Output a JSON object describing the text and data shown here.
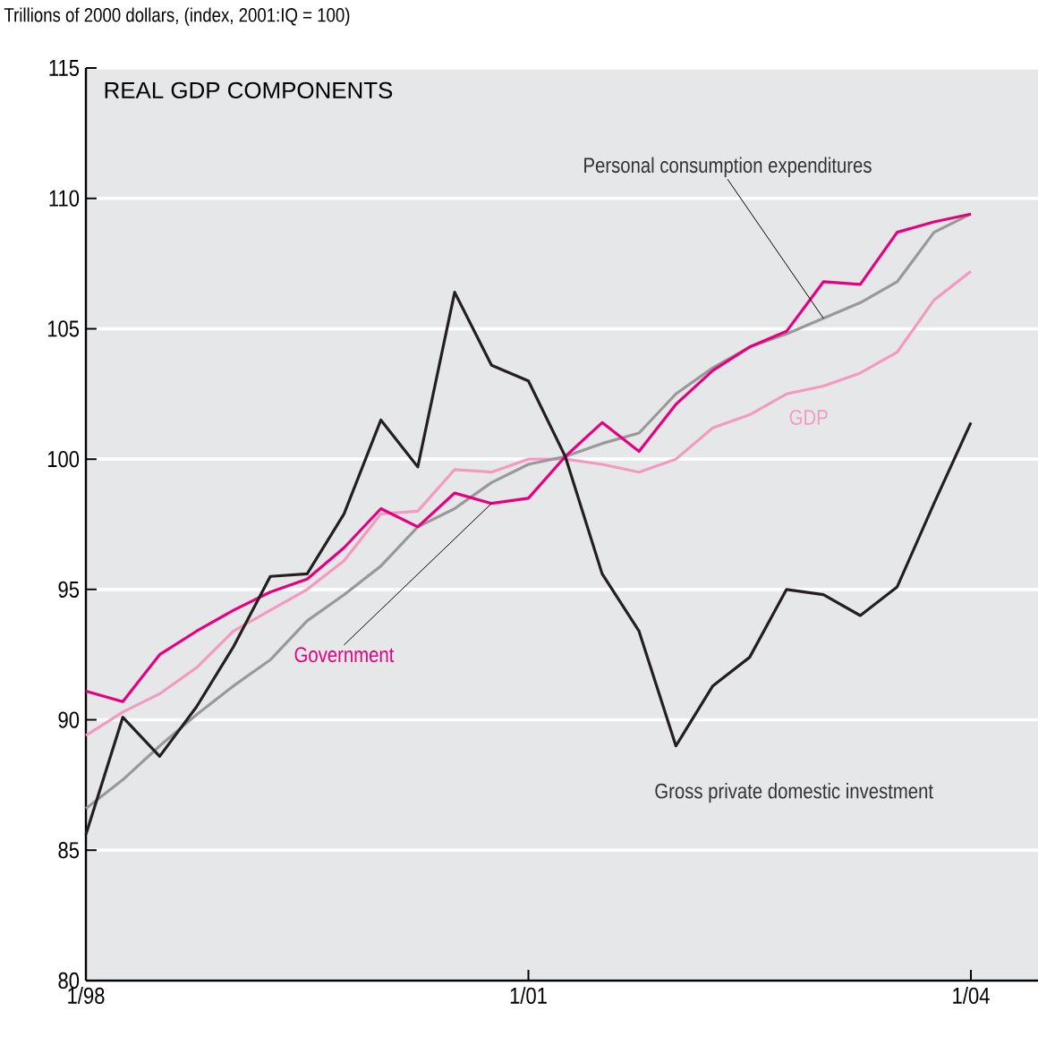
{
  "chart_data": {
    "type": "line",
    "title": "REAL GDP COMPONENTS",
    "ylabel": "Trillions of 2000 dollars, (index, 2001:IQ = 100)",
    "x": [
      "1998-01",
      "1998-04",
      "1998-07",
      "1998-10",
      "1999-01",
      "1999-04",
      "1999-07",
      "1999-10",
      "2000-01",
      "2000-04",
      "2000-07",
      "2000-10",
      "2001-01",
      "2001-04",
      "2001-07",
      "2001-10",
      "2002-01",
      "2002-04",
      "2002-07",
      "2002-10",
      "2003-01",
      "2003-04",
      "2003-07",
      "2003-10",
      "2004-01"
    ],
    "xlim": [
      "1998-01",
      "2004-06-15"
    ],
    "xticks": [
      {
        "value": "1998-01",
        "label": "1/98"
      },
      {
        "value": "2001-01",
        "label": "1/01"
      },
      {
        "value": "2004-01",
        "label": "1/04"
      }
    ],
    "ylim": [
      80,
      115
    ],
    "yticks": [
      80,
      85,
      90,
      95,
      100,
      105,
      110,
      115
    ],
    "grid": "y",
    "legend": false,
    "marker": "none",
    "line_style": "solid",
    "series": [
      {
        "name": "GDP",
        "color": "#f49ac1",
        "values": [
          89.4,
          90.3,
          91.0,
          92.0,
          93.4,
          94.2,
          95.0,
          96.1,
          97.9,
          98.0,
          99.6,
          99.5,
          100.0,
          100.0,
          99.8,
          99.5,
          100.0,
          101.2,
          101.7,
          102.5,
          102.8,
          103.3,
          104.1,
          106.1,
          107.2
        ]
      },
      {
        "name": "Personal consumption expenditures",
        "color": "#999999",
        "values": [
          86.6,
          87.7,
          89.0,
          90.2,
          91.3,
          92.3,
          93.8,
          94.8,
          95.9,
          97.4,
          98.1,
          99.1,
          99.8,
          100.1,
          100.6,
          101.0,
          102.5,
          103.5,
          104.3,
          104.8,
          105.4,
          106.0,
          106.8,
          108.7,
          109.4
        ]
      },
      {
        "name": "Government",
        "color": "#e6007e",
        "values": [
          91.1,
          90.7,
          92.5,
          93.4,
          94.2,
          94.9,
          95.4,
          96.6,
          98.1,
          97.4,
          98.7,
          98.3,
          98.5,
          100.1,
          101.4,
          100.3,
          102.1,
          103.4,
          104.3,
          104.9,
          106.8,
          106.7,
          108.7,
          109.1,
          109.4
        ]
      },
      {
        "name": "Gross private domestic investment",
        "color": "#231f20",
        "values": [
          85.6,
          90.1,
          88.6,
          90.5,
          92.8,
          95.5,
          95.6,
          97.9,
          101.5,
          99.7,
          106.4,
          103.6,
          103.0,
          100.1,
          95.6,
          93.4,
          89.0,
          91.3,
          92.4,
          95.0,
          94.8,
          94.0,
          95.1,
          98.3,
          101.4
        ]
      }
    ]
  }
}
